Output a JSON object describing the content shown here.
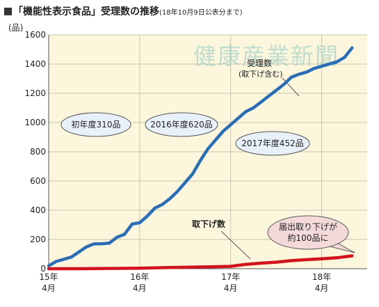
{
  "title": {
    "main": "「機能性表示食品」受理数の推移",
    "note": "(18年10月9日公表分まで)"
  },
  "watermark": "健康産業新聞",
  "colors": {
    "plot_bg": "#fbf6dc",
    "series_accepted": "#2a6db5",
    "series_withdrawn": "#d2141e",
    "bubble_fill": "#e8f0fa",
    "bubble_fill_pink": "#f3d9d9"
  },
  "chart_data": {
    "type": "line",
    "title": "「機能性表示食品」受理数の推移",
    "ylabel": "(品)",
    "ylim": [
      0,
      1600
    ],
    "yticks": [
      0,
      200,
      400,
      600,
      800,
      1000,
      1200,
      1400,
      1600
    ],
    "xlim": [
      0,
      42
    ],
    "xticks": [
      {
        "x": 0,
        "label": "15年 4月"
      },
      {
        "x": 12,
        "label": "16年 4月"
      },
      {
        "x": 24,
        "label": "17年 4月"
      },
      {
        "x": 36,
        "label": "18年 4月"
      }
    ],
    "grid": true,
    "series": [
      {
        "name": "受理数 (取下げ含む)",
        "x": [
          0,
          1,
          2,
          3,
          4,
          5,
          6,
          7,
          8,
          9,
          10,
          11,
          12,
          13,
          14,
          15,
          16,
          17,
          18,
          19,
          20,
          21,
          22,
          23,
          24,
          25,
          26,
          27,
          28,
          29,
          30,
          31,
          32,
          33,
          34,
          35,
          36,
          37,
          38,
          39,
          40
        ],
        "y": [
          20,
          50,
          65,
          80,
          115,
          150,
          170,
          170,
          175,
          215,
          235,
          305,
          315,
          360,
          415,
          440,
          480,
          530,
          590,
          650,
          740,
          820,
          880,
          940,
          985,
          1030,
          1075,
          1100,
          1140,
          1180,
          1220,
          1260,
          1310,
          1330,
          1345,
          1370,
          1385,
          1400,
          1415,
          1445,
          1510
        ]
      },
      {
        "name": "取下げ数",
        "x": [
          0,
          4,
          8,
          12,
          16,
          20,
          22,
          24,
          26,
          28,
          30,
          32,
          34,
          36,
          38,
          40
        ],
        "y": [
          0,
          0,
          2,
          4,
          8,
          12,
          14,
          16,
          30,
          38,
          45,
          55,
          62,
          68,
          75,
          88
        ]
      }
    ],
    "annotations": [
      {
        "text": "初年度310品"
      },
      {
        "text": "2016年度620品"
      },
      {
        "text": "2017年度452品"
      },
      {
        "text": "届出取り下げが 約100品に"
      }
    ]
  },
  "labels": {
    "series_accepted_line1": "受理数",
    "series_accepted_line2": "(取下げ含む)",
    "series_withdrawn": "取下げ数",
    "bubble_year1": "初年度310品",
    "bubble_2016": "2016年度620品",
    "bubble_2017": "2017年度452品",
    "bubble_withdraw_line1": "届出取り下げが",
    "bubble_withdraw_line2": "約100品に"
  }
}
